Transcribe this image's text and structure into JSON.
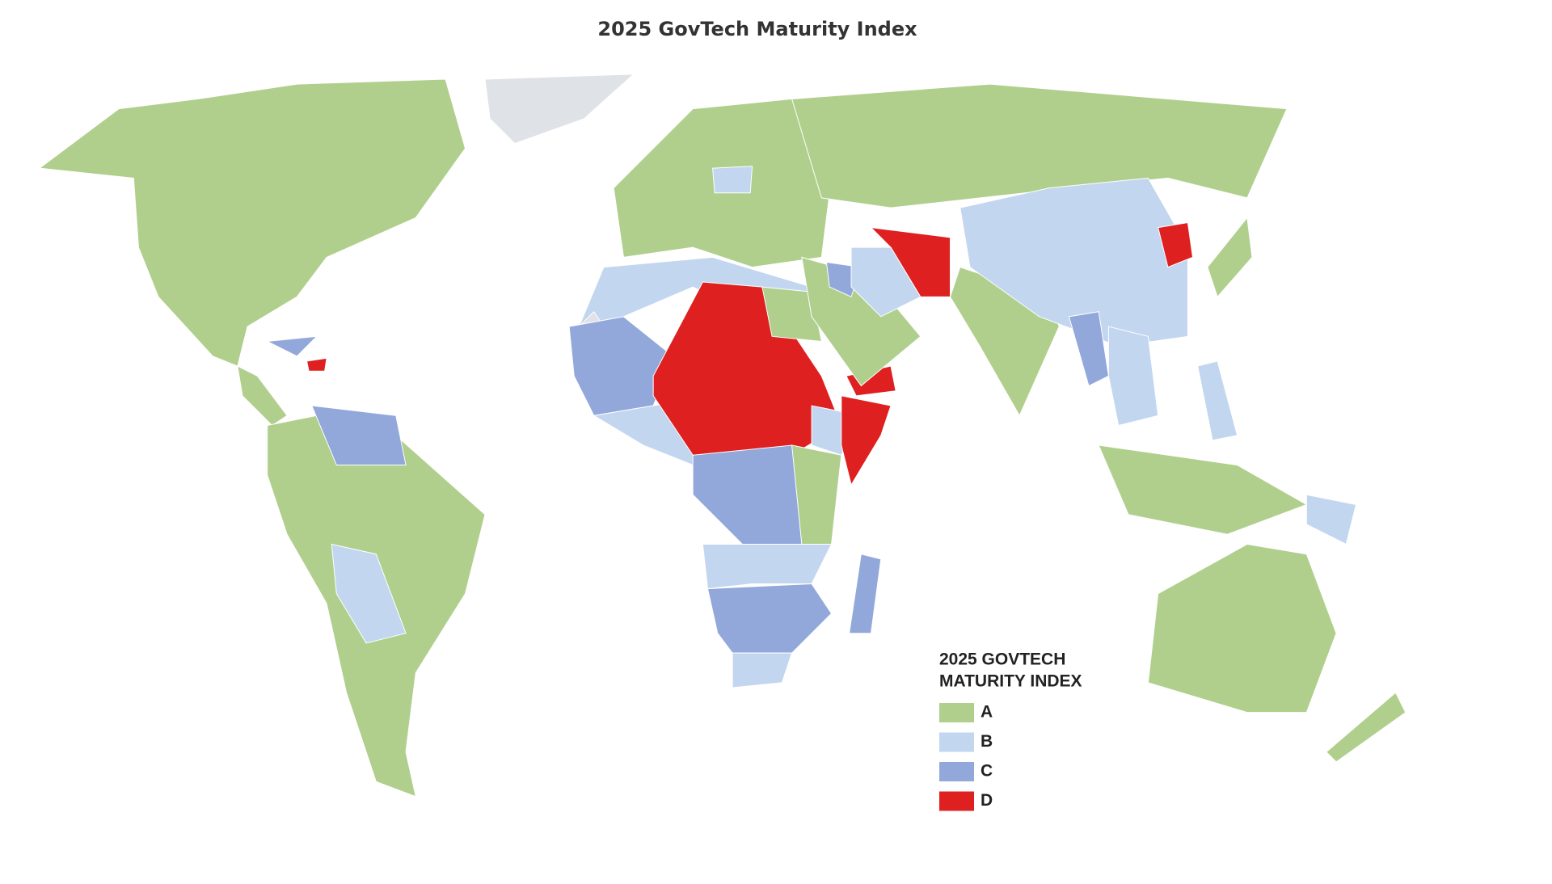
{
  "title": "2025 GovTech Maturity Index",
  "legend": {
    "title_lines": [
      "2025 GOVTECH",
      "MATURITY INDEX"
    ],
    "items": [
      {
        "label": "A",
        "color": "#b0cf8c"
      },
      {
        "label": "B",
        "color": "#c3d6ef"
      },
      {
        "label": "C",
        "color": "#93a8da"
      },
      {
        "label": "D",
        "color": "#de2020"
      }
    ]
  }
}
